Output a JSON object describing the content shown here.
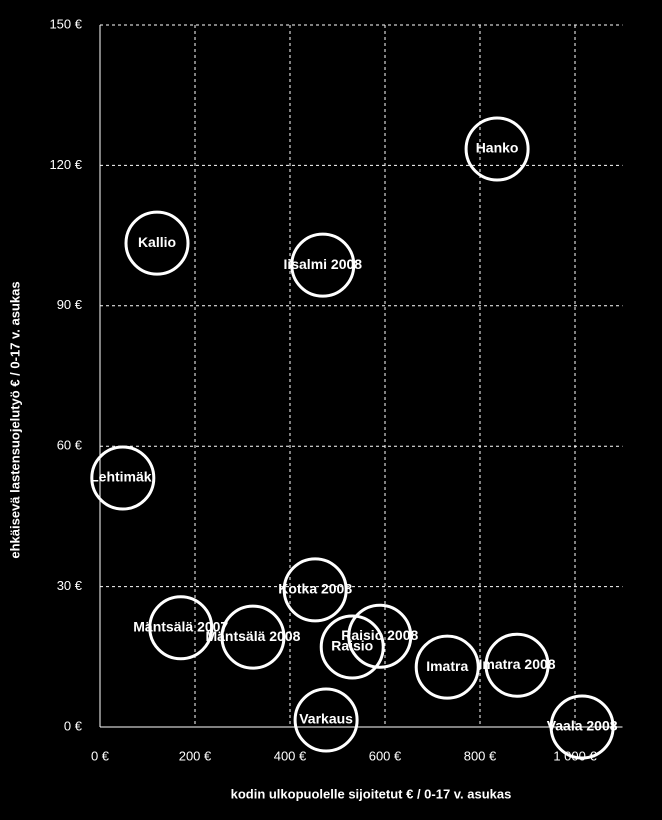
{
  "chart_data": {
    "type": "scatter",
    "x_label": "kodin ulkopuolelle sijoitetut € / 0-17 v. asukas",
    "y_label": "ehkäisevä lastensuojelutyö € / 0-17 v. asukas",
    "xlim": [
      0,
      1100
    ],
    "ylim": [
      0,
      150
    ],
    "xticks": [
      {
        "value": 0,
        "label": "0 €"
      },
      {
        "value": 200,
        "label": "200 €"
      },
      {
        "value": 400,
        "label": "400 €"
      },
      {
        "value": 600,
        "label": "600 €"
      },
      {
        "value": 800,
        "label": "800 €"
      },
      {
        "value": 1000,
        "label": "1 000 €"
      }
    ],
    "yticks": [
      {
        "value": 0,
        "label": "0 €"
      },
      {
        "value": 30,
        "label": "30 €"
      },
      {
        "value": 60,
        "label": "60 €"
      },
      {
        "value": 90,
        "label": "90 €"
      },
      {
        "value": 120,
        "label": "120 €"
      },
      {
        "value": 150,
        "label": "150 €"
      }
    ],
    "grid": true,
    "color": "#ffffff",
    "points": [
      {
        "label": "Hanko",
        "x": 836,
        "y": 123.5
      },
      {
        "label": "Kallio",
        "x": 120,
        "y": 103.4
      },
      {
        "label": "Iisalmi 2008",
        "x": 469,
        "y": 98.7
      },
      {
        "label": "Lehtimäki",
        "x": 48,
        "y": 53.2
      },
      {
        "label": "Kotka 2008",
        "x": 453,
        "y": 29.3
      },
      {
        "label": "Mäntsälä 2007",
        "x": 170,
        "y": 21.2
      },
      {
        "label": "Mäntsälä 2008",
        "x": 322,
        "y": 19.2
      },
      {
        "label": "Raisio 2008",
        "x": 589,
        "y": 19.4
      },
      {
        "label": "Raisio",
        "x": 531,
        "y": 17.1
      },
      {
        "label": "Imatra",
        "x": 731,
        "y": 12.8
      },
      {
        "label": "Imatra 2008",
        "x": 878,
        "y": 13.2
      },
      {
        "label": "Varkaus",
        "x": 476,
        "y": 1.5
      },
      {
        "label": "Vaala 2008",
        "x": 1015,
        "y": 0
      }
    ]
  }
}
